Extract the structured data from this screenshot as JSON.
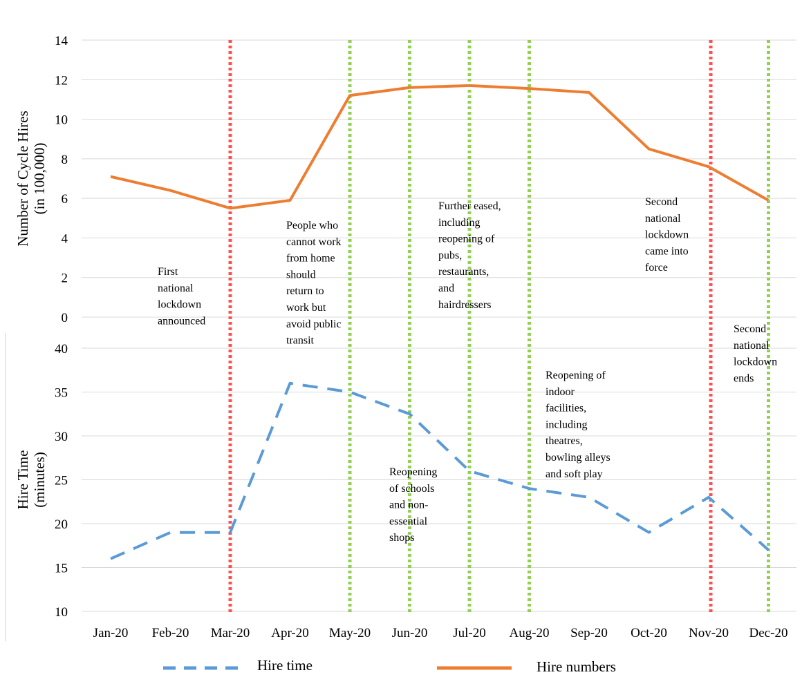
{
  "chart_data": [
    {
      "type": "line",
      "ylabel_line1": "Number of Cycle Hires",
      "ylabel_line2": "(in 100,000)",
      "ylim": [
        0,
        14
      ],
      "yticks": [
        0,
        2,
        4,
        6,
        8,
        10,
        12,
        14
      ],
      "grid": true,
      "series": [
        {
          "name": "Hire numbers",
          "color": "#ed7d31",
          "style": "solid",
          "values": [
            7.1,
            6.4,
            5.5,
            5.9,
            11.2,
            11.6,
            11.7,
            11.55,
            11.35,
            8.5,
            7.6,
            5.9
          ]
        }
      ]
    },
    {
      "type": "line",
      "ylabel_line1": "Hire Time",
      "ylabel_line2": "(minutes)",
      "ylim": [
        10,
        40
      ],
      "yticks": [
        10,
        15,
        20,
        25,
        30,
        35,
        40
      ],
      "grid": true,
      "series": [
        {
          "name": "Hire time",
          "color": "#5b9bd5",
          "style": "dashed",
          "values": [
            16,
            19,
            19,
            36,
            35,
            32.5,
            26,
            24,
            23,
            19,
            23,
            17
          ]
        }
      ]
    }
  ],
  "categories": [
    "Jan-20",
    "Feb-20",
    "Mar-20",
    "Apr-20",
    "May-20",
    "Jun-20",
    "Jul-20",
    "Aug-20",
    "Sep-20",
    "Oct-20",
    "Nov-20",
    "Dec-20"
  ],
  "event_lines": [
    {
      "at": 2,
      "color": "#ff5050"
    },
    {
      "at": 4,
      "color": "#92d050"
    },
    {
      "at": 5,
      "color": "#92d050"
    },
    {
      "at": 6,
      "color": "#92d050"
    },
    {
      "at": 7,
      "color": "#92d050"
    },
    {
      "at": 10,
      "color": "#ff5050"
    },
    {
      "at": 11,
      "color": "#92d050"
    }
  ],
  "annotations": [
    {
      "lines": [
        "First",
        "national",
        "lockdown",
        "announced"
      ]
    },
    {
      "lines": [
        "People who",
        "cannot work",
        "from home",
        "should",
        "return to",
        "work but",
        "avoid public",
        "transit"
      ]
    },
    {
      "lines": [
        "Further eased,",
        "including",
        "reopening of",
        "pubs,",
        "restaurants,",
        "and",
        "hairdressers"
      ]
    },
    {
      "lines": [
        "Second",
        "national",
        "lockdown",
        "came into",
        "force"
      ]
    },
    {
      "lines": [
        "Reopening",
        "of schools",
        "and non-",
        "essential",
        "shops"
      ]
    },
    {
      "lines": [
        "Reopening of",
        "indoor",
        "facilities,",
        "including",
        "theatres,",
        "bowling alleys",
        "and soft play"
      ]
    },
    {
      "lines": [
        "Second",
        "national",
        "lockdown",
        "ends"
      ]
    }
  ],
  "legend": [
    {
      "label": "Hire time",
      "color": "#5b9bd5",
      "style": "dashed"
    },
    {
      "label": "Hire numbers",
      "color": "#ed7d31",
      "style": "solid"
    }
  ]
}
